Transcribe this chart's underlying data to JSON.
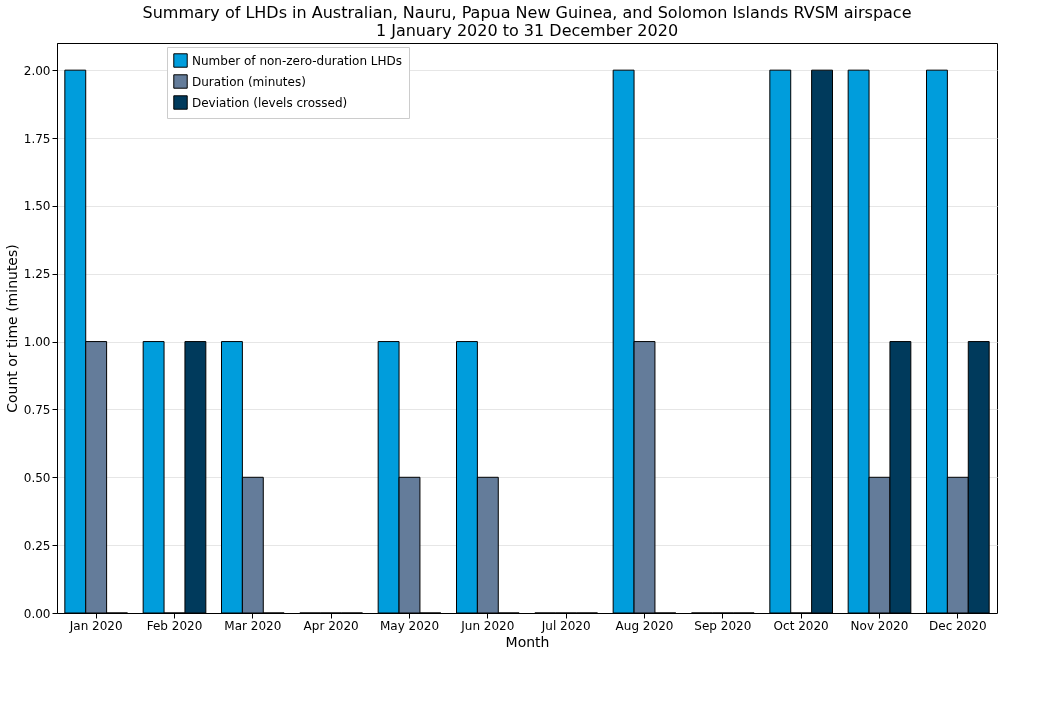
{
  "chart_data": {
    "type": "bar",
    "title": "Summary of LHDs in Australian, Nauru, Papua New Guinea, and Solomon Islands RVSM airspace",
    "subtitle": "1 January 2020 to 31 December 2020",
    "xlabel": "Month",
    "ylabel": "Count or time (minutes)",
    "categories": [
      "Jan 2020",
      "Feb 2020",
      "Mar 2020",
      "Apr 2020",
      "May 2020",
      "Jun 2020",
      "Jul 2020",
      "Aug 2020",
      "Sep 2020",
      "Oct 2020",
      "Nov 2020",
      "Dec 2020"
    ],
    "series": [
      {
        "name": "Number of non-zero-duration LHDs",
        "color": "#009ddc",
        "values": [
          2,
          1,
          1,
          0,
          1,
          1,
          0,
          2,
          0,
          2,
          2,
          2
        ]
      },
      {
        "name": "Duration (minutes)",
        "color": "#647c9a",
        "values": [
          1,
          0,
          0.5,
          0,
          0.5,
          0.5,
          0,
          1,
          0,
          0,
          0.5,
          0.5
        ]
      },
      {
        "name": "Deviation (levels crossed)",
        "color": "#003a5c",
        "values": [
          0,
          1,
          0,
          0,
          0,
          0,
          0,
          0,
          0,
          2,
          1,
          1
        ]
      }
    ],
    "ylim": [
      0,
      2.1
    ],
    "yticks": [
      {
        "value": 0,
        "label": "0.00"
      },
      {
        "value": 0.25,
        "label": "0.25"
      },
      {
        "value": 0.5,
        "label": "0.50"
      },
      {
        "value": 0.75,
        "label": "0.75"
      },
      {
        "value": 1,
        "label": "1.00"
      },
      {
        "value": 1.25,
        "label": "1.25"
      },
      {
        "value": 1.5,
        "label": "1.50"
      },
      {
        "value": 1.75,
        "label": "1.75"
      },
      {
        "value": 2,
        "label": "2.00"
      }
    ],
    "grid": "y",
    "legend": "top left"
  }
}
